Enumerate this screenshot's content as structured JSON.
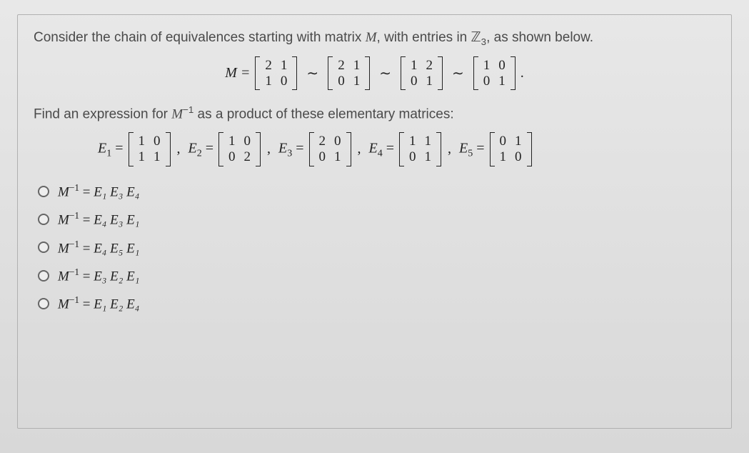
{
  "prompt": {
    "line1_a": "Consider the chain of equivalences starting with matrix ",
    "M": "M",
    "line1_b": ", with entries in ",
    "Z": "ℤ",
    "Z_sub": "3",
    "line1_c": ", as shown below.",
    "line2_a": "Find an expression for ",
    "Minv": "M",
    "Minv_sup": "−1",
    "line2_b": " as a product of these elementary matrices:"
  },
  "chain": {
    "lhs": "M =",
    "m1": [
      [
        "2",
        "1"
      ],
      [
        "1",
        "0"
      ]
    ],
    "m2": [
      [
        "2",
        "1"
      ],
      [
        "0",
        "1"
      ]
    ],
    "m3": [
      [
        "1",
        "2"
      ],
      [
        "0",
        "1"
      ]
    ],
    "m4": [
      [
        "1",
        "0"
      ],
      [
        "0",
        "1"
      ]
    ],
    "tail": "."
  },
  "elem": {
    "E1_lbl": "E",
    "E1_sub": "1",
    "eq": " = ",
    "E1": [
      [
        "1",
        "0"
      ],
      [
        "1",
        "1"
      ]
    ],
    "E2_lbl": "E",
    "E2_sub": "2",
    "E2": [
      [
        "1",
        "0"
      ],
      [
        "0",
        "2"
      ]
    ],
    "E3_lbl": "E",
    "E3_sub": "3",
    "E3": [
      [
        "2",
        "0"
      ],
      [
        "0",
        "1"
      ]
    ],
    "E4_lbl": "E",
    "E4_sub": "4",
    "E4": [
      [
        "1",
        "1"
      ],
      [
        "0",
        "1"
      ]
    ],
    "E5_lbl": "E",
    "E5_sub": "5",
    "E5": [
      [
        "0",
        "1"
      ],
      [
        "1",
        "0"
      ]
    ]
  },
  "options": [
    {
      "lhs": "M",
      "sup": "−1",
      "eq": " = ",
      "rhs": "E₁ E₃ E₄"
    },
    {
      "lhs": "M",
      "sup": "−1",
      "eq": " = ",
      "rhs": "E₄ E₃ E₁"
    },
    {
      "lhs": "M",
      "sup": "−1",
      "eq": " = ",
      "rhs": "E₄ E₅ E₁"
    },
    {
      "lhs": "M",
      "sup": "−1",
      "eq": " = ",
      "rhs": "E₃ E₂ E₁"
    },
    {
      "lhs": "M",
      "sup": "−1",
      "eq": " = ",
      "rhs": "E₁ E₂ E₄"
    }
  ],
  "style": {
    "bg": "#e0e0e0",
    "text": "#4a4a4a",
    "math": "#222222",
    "border": "#b0b0b0",
    "radio_border": "#666666"
  }
}
